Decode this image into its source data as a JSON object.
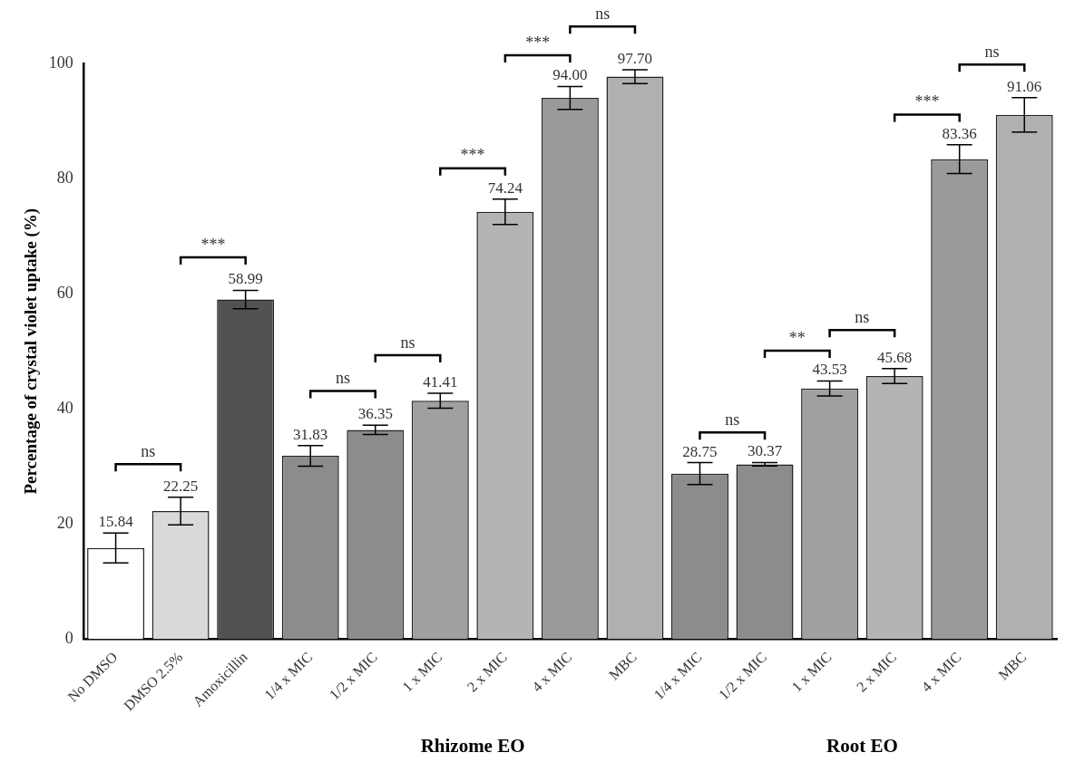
{
  "chart_data": {
    "type": "bar",
    "ylabel": "Percentage of crystal violet uptake (%)",
    "categories": [
      "No DMSO",
      "DMSO 2.5%",
      "Amoxicillin",
      "1/4 x MIC",
      "1/2 x MIC",
      "1 x MIC",
      "2 x MIC",
      "4 x MIC",
      "MBC",
      "1/4 x MIC",
      "1/2 x MIC",
      "1 x MIC",
      "2 x MIC",
      "4 x MIC",
      "MBC"
    ],
    "values": [
      15.84,
      22.25,
      58.99,
      31.83,
      36.35,
      41.41,
      74.24,
      94.0,
      97.7,
      28.75,
      30.37,
      43.53,
      45.68,
      83.36,
      91.06
    ],
    "errors": [
      2.6,
      2.4,
      1.6,
      1.8,
      0.8,
      1.3,
      2.2,
      2.0,
      1.2,
      1.9,
      0.3,
      1.3,
      1.3,
      2.5,
      3.0
    ],
    "colors": [
      "#ffffff",
      "#d9d9d9",
      "#525252",
      "#8c8c8c",
      "#8c8c8c",
      "#a0a0a0",
      "#b4b4b4",
      "#9a9a9a",
      "#b0b0b0",
      "#8c8c8c",
      "#8c8c8c",
      "#a0a0a0",
      "#b4b4b4",
      "#9a9a9a",
      "#b0b0b0"
    ],
    "value_labels": [
      "15.84",
      "22.25",
      "58.99",
      "31.83",
      "36.35",
      "41.41",
      "74.24",
      "94.00",
      "97.70",
      "28.75",
      "30.37",
      "43.53",
      "45.68",
      "83.36",
      "91.06"
    ],
    "ylim": [
      0,
      100
    ],
    "yticks": [
      0,
      20,
      40,
      60,
      80,
      100
    ],
    "grid": false,
    "legend": false,
    "annotations": [
      "ns",
      "***",
      "ns",
      "ns",
      "***",
      "***",
      "ns",
      "ns",
      "**",
      "ns",
      "***",
      "ns",
      "Rhizome EO",
      "Root EO"
    ]
  }
}
